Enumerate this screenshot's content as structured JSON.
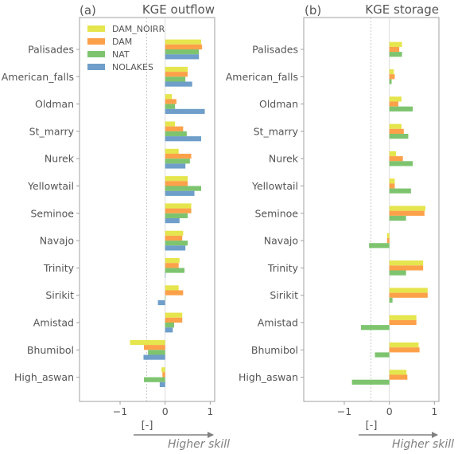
{
  "colors": {
    "DAM_NOIRR": "#e5e54d",
    "DAM": "#fca14a",
    "NAT": "#7ec46f",
    "NOLAKES": "#6e9ec9",
    "axis": "#808080",
    "text": "#555555"
  },
  "xlabel": "[-]",
  "arrow_label": "Higher skill",
  "chart_data": [
    {
      "type": "bar",
      "orientation": "horizontal",
      "panel_label": "(a)",
      "title": "KGE outflow",
      "xlim": [
        -1.9,
        1.1
      ],
      "xticks": [
        -1,
        0,
        1
      ],
      "xtick_labels": [
        "−1",
        "0",
        "1"
      ],
      "xlabel": "[-]",
      "reference_line": -0.41,
      "legend_position": "top-left",
      "categories": [
        "Palisades",
        "American_falls",
        "Oldman",
        "St_marry",
        "Nurek",
        "Yellowtail",
        "Seminoe",
        "Navajo",
        "Trinity",
        "Sirikit",
        "Amistad",
        "Bhumibol",
        "High_aswan"
      ],
      "series": [
        {
          "name": "DAM_NOIRR",
          "values": [
            0.8,
            0.5,
            0.15,
            0.22,
            0.3,
            0.5,
            0.58,
            0.4,
            0.32,
            0.3,
            0.38,
            -0.78,
            -0.08
          ]
        },
        {
          "name": "DAM",
          "values": [
            0.82,
            0.5,
            0.25,
            0.4,
            0.58,
            0.5,
            0.58,
            0.38,
            0.3,
            0.4,
            0.38,
            -0.47,
            -0.06
          ]
        },
        {
          "name": "NAT",
          "values": [
            0.75,
            0.45,
            0.22,
            0.48,
            0.55,
            0.8,
            0.5,
            0.5,
            0.43,
            0.0,
            0.2,
            -0.38,
            -0.47
          ]
        },
        {
          "name": "NOLAKES",
          "values": [
            0.75,
            0.6,
            0.88,
            0.8,
            0.45,
            0.65,
            0.32,
            0.45,
            0.0,
            -0.16,
            0.17,
            -0.48,
            -0.12
          ]
        }
      ]
    },
    {
      "type": "bar",
      "orientation": "horizontal",
      "panel_label": "(b)",
      "title": "KGE storage",
      "xlim": [
        -1.9,
        1.1
      ],
      "xticks": [
        -1,
        0,
        1
      ],
      "xtick_labels": [
        "−1",
        "0",
        "1"
      ],
      "xlabel": "[-]",
      "reference_line": -0.41,
      "categories": [
        "Palisades",
        "American_falls",
        "Oldman",
        "St_marry",
        "Nurek",
        "Yellowtail",
        "Seminoe",
        "Navajo",
        "Trinity",
        "Sirikit",
        "Amistad",
        "Bhumibol",
        "High_aswan"
      ],
      "series": [
        {
          "name": "DAM_NOIRR",
          "values": [
            0.28,
            0.1,
            0.27,
            0.27,
            0.15,
            0.12,
            0.8,
            -0.05,
            0.75,
            0.85,
            0.6,
            0.65,
            0.38
          ]
        },
        {
          "name": "DAM",
          "values": [
            0.22,
            0.12,
            0.2,
            0.32,
            0.3,
            0.12,
            0.78,
            -0.05,
            0.75,
            0.85,
            0.6,
            0.67,
            0.4
          ]
        },
        {
          "name": "NAT",
          "values": [
            0.28,
            0.05,
            0.52,
            0.42,
            0.52,
            0.48,
            0.37,
            -0.45,
            0.37,
            0.07,
            -0.63,
            -0.32,
            -0.83
          ]
        }
      ]
    }
  ]
}
